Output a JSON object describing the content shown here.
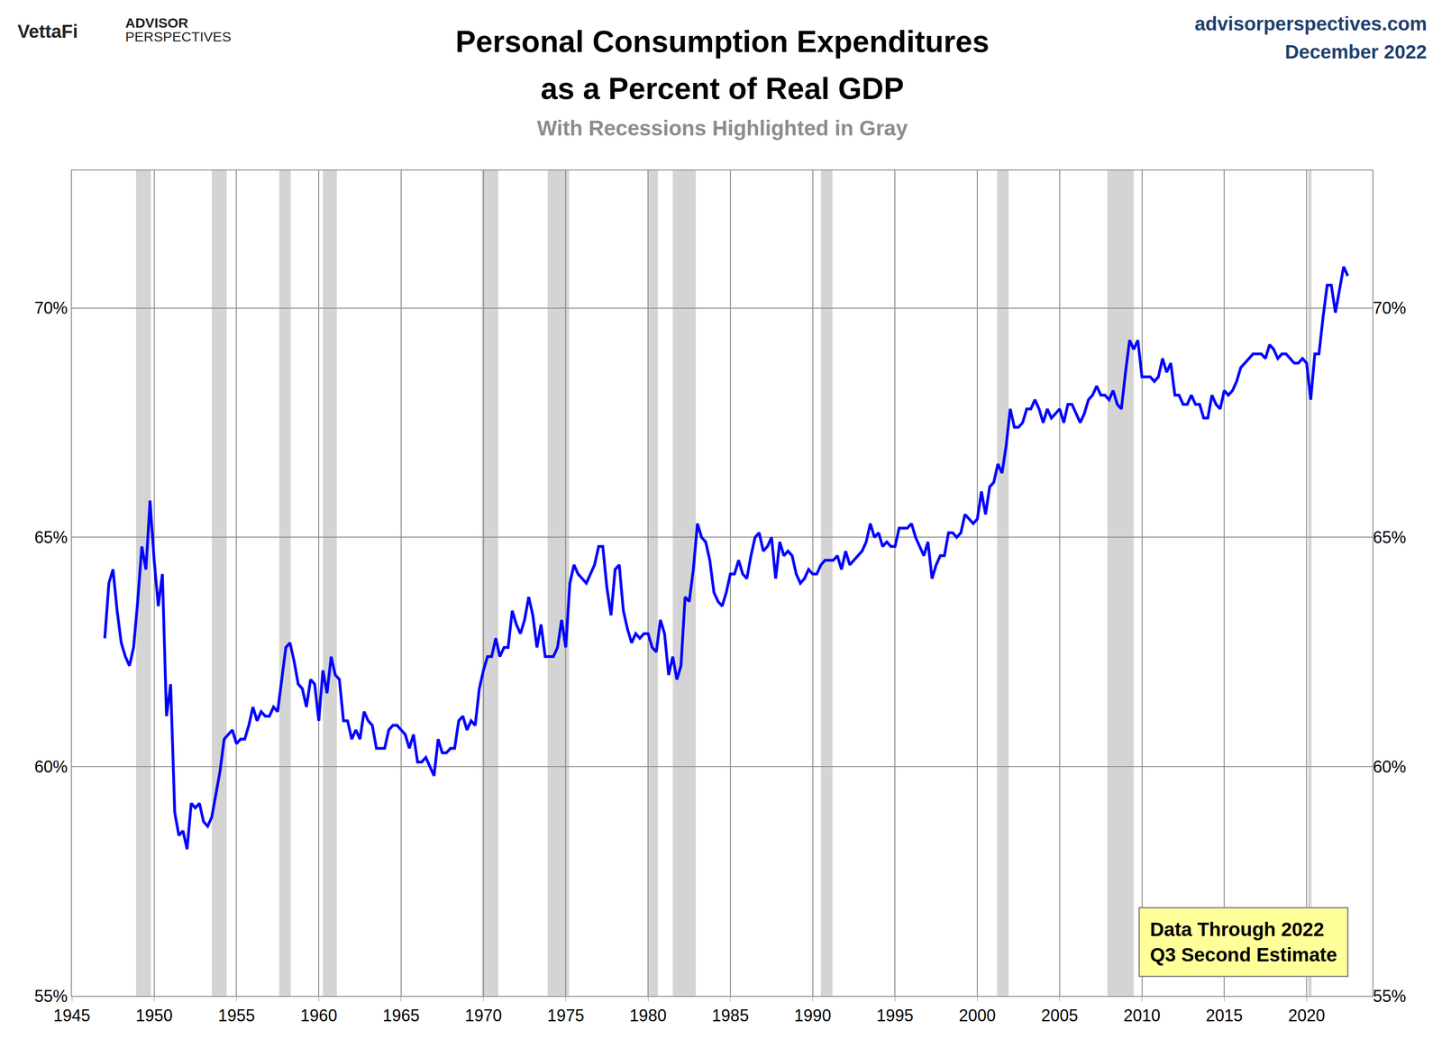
{
  "chart_data": {
    "type": "line",
    "title": [
      "Personal Consumption Expenditures",
      "as a Percent of Real GDP"
    ],
    "subtitle": "With Recessions Highlighted in Gray",
    "brand": "VettaFi",
    "brand_sub": [
      "ADVISOR",
      "PERSPECTIVES"
    ],
    "source": "advisorperspectives.com",
    "date": "December 2022",
    "note": [
      "Data Through 2022",
      "Q3 Second Estimate"
    ],
    "color": "#0000ff",
    "grid": true,
    "xlim": [
      1945,
      2024
    ],
    "xticks": [
      1945,
      1950,
      1955,
      1960,
      1965,
      1970,
      1975,
      1980,
      1985,
      1990,
      1995,
      2000,
      2005,
      2010,
      2015,
      2020
    ],
    "ylim": [
      55,
      73
    ],
    "yticks": [
      {
        "value": 55,
        "label": "55%"
      },
      {
        "value": 60,
        "label": "60%"
      },
      {
        "value": 65,
        "label": "65%"
      },
      {
        "value": 70,
        "label": "70%"
      }
    ],
    "recessions": [
      [
        1948.9,
        1949.8
      ],
      [
        1953.5,
        1954.4
      ],
      [
        1957.6,
        1958.3
      ],
      [
        1960.25,
        1961.1
      ],
      [
        1969.9,
        1970.9
      ],
      [
        1973.9,
        1975.2
      ],
      [
        1980.0,
        1980.6
      ],
      [
        1981.5,
        1982.9
      ],
      [
        1990.5,
        1991.2
      ],
      [
        2001.2,
        2001.9
      ],
      [
        2007.9,
        2009.5
      ],
      [
        2020.1,
        2020.3
      ]
    ],
    "x": [
      1947,
      1947.25,
      1947.5,
      1947.75,
      1948,
      1948.25,
      1948.5,
      1948.75,
      1949,
      1949.25,
      1949.5,
      1949.75,
      1950,
      1950.25,
      1950.5,
      1950.75,
      1951,
      1951.25,
      1951.5,
      1951.75,
      1952,
      1952.25,
      1952.5,
      1952.75,
      1953,
      1953.25,
      1953.5,
      1953.75,
      1954,
      1954.25,
      1954.5,
      1954.75,
      1955,
      1955.25,
      1955.5,
      1955.75,
      1956,
      1956.25,
      1956.5,
      1956.75,
      1957,
      1957.25,
      1957.5,
      1957.75,
      1958,
      1958.25,
      1958.5,
      1958.75,
      1959,
      1959.25,
      1959.5,
      1959.75,
      1960,
      1960.25,
      1960.5,
      1960.75,
      1961,
      1961.25,
      1961.5,
      1961.75,
      1962,
      1962.25,
      1962.5,
      1962.75,
      1963,
      1963.25,
      1963.5,
      1963.75,
      1964,
      1964.25,
      1964.5,
      1964.75,
      1965,
      1965.25,
      1965.5,
      1965.75,
      1966,
      1966.25,
      1966.5,
      1966.75,
      1967,
      1967.25,
      1967.5,
      1967.75,
      1968,
      1968.25,
      1968.5,
      1968.75,
      1969,
      1969.25,
      1969.5,
      1969.75,
      1970,
      1970.25,
      1970.5,
      1970.75,
      1971,
      1971.25,
      1971.5,
      1971.75,
      1972,
      1972.25,
      1972.5,
      1972.75,
      1973,
      1973.25,
      1973.5,
      1973.75,
      1974,
      1974.25,
      1974.5,
      1974.75,
      1975,
      1975.25,
      1975.5,
      1975.75,
      1976,
      1976.25,
      1976.5,
      1976.75,
      1977,
      1977.25,
      1977.5,
      1977.75,
      1978,
      1978.25,
      1978.5,
      1978.75,
      1979,
      1979.25,
      1979.5,
      1979.75,
      1980,
      1980.25,
      1980.5,
      1980.75,
      1981,
      1981.25,
      1981.5,
      1981.75,
      1982,
      1982.25,
      1982.5,
      1982.75,
      1983,
      1983.25,
      1983.5,
      1983.75,
      1984,
      1984.25,
      1984.5,
      1984.75,
      1985,
      1985.25,
      1985.5,
      1985.75,
      1986,
      1986.25,
      1986.5,
      1986.75,
      1987,
      1987.25,
      1987.5,
      1987.75,
      1988,
      1988.25,
      1988.5,
      1988.75,
      1989,
      1989.25,
      1989.5,
      1989.75,
      1990,
      1990.25,
      1990.5,
      1990.75,
      1991,
      1991.25,
      1991.5,
      1991.75,
      1992,
      1992.25,
      1992.5,
      1992.75,
      1993,
      1993.25,
      1993.5,
      1993.75,
      1994,
      1994.25,
      1994.5,
      1994.75,
      1995,
      1995.25,
      1995.5,
      1995.75,
      1996,
      1996.25,
      1996.5,
      1996.75,
      1997,
      1997.25,
      1997.5,
      1997.75,
      1998,
      1998.25,
      1998.5,
      1998.75,
      1999,
      1999.25,
      1999.5,
      1999.75,
      2000,
      2000.25,
      2000.5,
      2000.75,
      2001,
      2001.25,
      2001.5,
      2001.75,
      2002,
      2002.25,
      2002.5,
      2002.75,
      2003,
      2003.25,
      2003.5,
      2003.75,
      2004,
      2004.25,
      2004.5,
      2004.75,
      2005,
      2005.25,
      2005.5,
      2005.75,
      2006,
      2006.25,
      2006.5,
      2006.75,
      2007,
      2007.25,
      2007.5,
      2007.75,
      2008,
      2008.25,
      2008.5,
      2008.75,
      2009,
      2009.25,
      2009.5,
      2009.75,
      2010,
      2010.25,
      2010.5,
      2010.75,
      2011,
      2011.25,
      2011.5,
      2011.75,
      2012,
      2012.25,
      2012.5,
      2012.75,
      2013,
      2013.25,
      2013.5,
      2013.75,
      2014,
      2014.25,
      2014.5,
      2014.75,
      2015,
      2015.25,
      2015.5,
      2015.75,
      2016,
      2016.25,
      2016.5,
      2016.75,
      2017,
      2017.25,
      2017.5,
      2017.75,
      2018,
      2018.25,
      2018.5,
      2018.75,
      2019,
      2019.25,
      2019.5,
      2019.75,
      2020,
      2020.25,
      2020.5,
      2020.75,
      2021,
      2021.25,
      2021.5,
      2021.75,
      2022,
      2022.25,
      2022.5
    ],
    "values": [
      62.8,
      64.0,
      64.3,
      63.4,
      62.7,
      62.4,
      62.2,
      62.6,
      63.6,
      64.8,
      64.3,
      65.8,
      64.5,
      63.5,
      64.2,
      61.1,
      61.8,
      59.0,
      58.5,
      58.6,
      58.2,
      59.2,
      59.1,
      59.2,
      58.8,
      58.7,
      58.9,
      59.4,
      59.9,
      60.6,
      60.7,
      60.8,
      60.5,
      60.6,
      60.6,
      60.9,
      61.3,
      61.0,
      61.2,
      61.1,
      61.1,
      61.3,
      61.2,
      61.9,
      62.6,
      62.7,
      62.3,
      61.8,
      61.7,
      61.3,
      61.9,
      61.8,
      61.0,
      62.1,
      61.6,
      62.4,
      62.0,
      61.9,
      61.0,
      61.0,
      60.6,
      60.8,
      60.6,
      61.2,
      61.0,
      60.9,
      60.4,
      60.4,
      60.4,
      60.8,
      60.9,
      60.9,
      60.8,
      60.7,
      60.4,
      60.7,
      60.1,
      60.1,
      60.2,
      60.0,
      59.8,
      60.6,
      60.3,
      60.3,
      60.4,
      60.4,
      61.0,
      61.1,
      60.8,
      61.0,
      60.9,
      61.7,
      62.1,
      62.4,
      62.4,
      62.8,
      62.4,
      62.6,
      62.6,
      63.4,
      63.1,
      62.9,
      63.2,
      63.7,
      63.3,
      62.6,
      63.1,
      62.4,
      62.4,
      62.4,
      62.6,
      63.2,
      62.6,
      64.0,
      64.4,
      64.2,
      64.1,
      64.0,
      64.2,
      64.4,
      64.8,
      64.8,
      63.9,
      63.3,
      64.3,
      64.4,
      63.4,
      63.0,
      62.7,
      62.9,
      62.8,
      62.9,
      62.9,
      62.6,
      62.5,
      63.2,
      62.9,
      62.0,
      62.4,
      61.9,
      62.2,
      63.7,
      63.6,
      64.3,
      65.3,
      65.0,
      64.9,
      64.5,
      63.8,
      63.6,
      63.5,
      63.8,
      64.2,
      64.2,
      64.5,
      64.2,
      64.1,
      64.6,
      65.0,
      65.1,
      64.7,
      64.8,
      65.0,
      64.1,
      64.9,
      64.6,
      64.7,
      64.6,
      64.2,
      64.0,
      64.1,
      64.3,
      64.2,
      64.2,
      64.4,
      64.5,
      64.5,
      64.5,
      64.6,
      64.3,
      64.7,
      64.4,
      64.5,
      64.6,
      64.7,
      64.9,
      65.3,
      65.0,
      65.1,
      64.8,
      64.9,
      64.8,
      64.8,
      65.2,
      65.2,
      65.2,
      65.3,
      65.0,
      64.8,
      64.6,
      64.9,
      64.1,
      64.4,
      64.6,
      64.6,
      65.1,
      65.1,
      65.0,
      65.1,
      65.5,
      65.4,
      65.3,
      65.4,
      66.0,
      65.5,
      66.1,
      66.2,
      66.6,
      66.4,
      67.0,
      67.8,
      67.4,
      67.4,
      67.5,
      67.8,
      67.8,
      68.0,
      67.8,
      67.5,
      67.8,
      67.6,
      67.7,
      67.8,
      67.5,
      67.9,
      67.9,
      67.7,
      67.5,
      67.7,
      68.0,
      68.1,
      68.3,
      68.1,
      68.1,
      68.0,
      68.2,
      67.9,
      67.8,
      68.6,
      69.3,
      69.1,
      69.3,
      68.5,
      68.5,
      68.5,
      68.4,
      68.5,
      68.9,
      68.6,
      68.8,
      68.1,
      68.1,
      67.9,
      67.9,
      68.1,
      67.9,
      67.9,
      67.6,
      67.6,
      68.1,
      67.9,
      67.8,
      68.2,
      68.1,
      68.2,
      68.4,
      68.7,
      68.8,
      68.9,
      69.0,
      69.0,
      69.0,
      68.9,
      69.2,
      69.1,
      68.9,
      69.0,
      69.0,
      68.9,
      68.8,
      68.8,
      68.9,
      68.8,
      68.0,
      69.0,
      69.0,
      69.8,
      70.5,
      70.5,
      69.9,
      70.4,
      70.9,
      70.7
    ]
  }
}
